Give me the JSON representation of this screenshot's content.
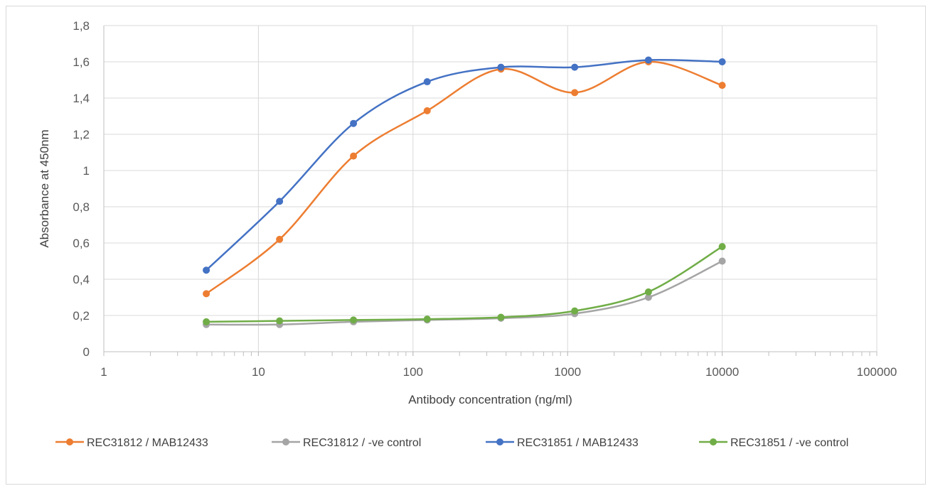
{
  "chart_data": {
    "type": "line",
    "x_scale": "log",
    "xlabel": "Antibody concentration (ng/ml)",
    "ylabel": "Absorbance at 450nm",
    "xlim": [
      1,
      100000
    ],
    "ylim": [
      0,
      1.8
    ],
    "x_ticks": [
      1,
      10,
      100,
      1000,
      10000,
      100000
    ],
    "x_tick_labels": [
      "1",
      "10",
      "100",
      "1000",
      "10000",
      "100000"
    ],
    "y_ticks": [
      0,
      0.2,
      0.4,
      0.6,
      0.8,
      1,
      1.2,
      1.4,
      1.6,
      1.8
    ],
    "y_tick_labels": [
      "0",
      "0,2",
      "0,4",
      "0,6",
      "0,8",
      "1",
      "1,2",
      "1,4",
      "1,6",
      "1,8"
    ],
    "grid": true,
    "smooth": true,
    "legend_position": "bottom",
    "x": [
      4.6,
      13.7,
      41.2,
      123.5,
      370.4,
      1111.1,
      3333.3,
      10000
    ],
    "series": [
      {
        "name": "REC31812 / MAB12433",
        "color": "#ed7d31",
        "values": [
          0.32,
          0.62,
          1.08,
          1.33,
          1.56,
          1.43,
          1.6,
          1.47
        ]
      },
      {
        "name": "REC31812 / -ve control",
        "color": "#a5a5a5",
        "values": [
          0.15,
          0.15,
          0.165,
          0.175,
          0.185,
          0.21,
          0.3,
          0.5
        ]
      },
      {
        "name": "REC31851 / MAB12433",
        "color": "#4472c4",
        "values": [
          0.45,
          0.83,
          1.26,
          1.49,
          1.57,
          1.57,
          1.61,
          1.6
        ]
      },
      {
        "name": "REC31851 / -ve control",
        "color": "#70ad47",
        "values": [
          0.165,
          0.17,
          0.175,
          0.18,
          0.19,
          0.225,
          0.33,
          0.58
        ]
      }
    ]
  }
}
